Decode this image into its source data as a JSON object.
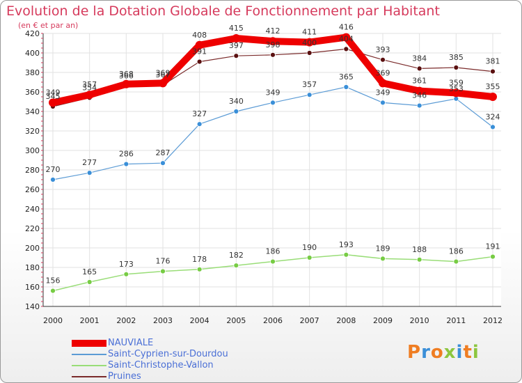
{
  "title": "Evolution de la Dotation Globale de Fonctionnement par Habitant",
  "subtitle": "(en € et par an)",
  "logo": "Proxiti",
  "chart_data": {
    "type": "line",
    "title": "Evolution de la Dotation Globale de Fonctionnement par Habitant",
    "ylabel": "(en € et par an)",
    "xlabel": "",
    "ylim": [
      140,
      420
    ],
    "yticks": [
      140,
      160,
      180,
      200,
      220,
      240,
      260,
      280,
      300,
      320,
      340,
      360,
      380,
      400,
      420
    ],
    "grid": true,
    "categories": [
      "2000",
      "2001",
      "2002",
      "2003",
      "2004",
      "2005",
      "2006",
      "2007",
      "2008",
      "2009",
      "2010",
      "2011",
      "2012"
    ],
    "series": [
      {
        "name": "NAUVIALE",
        "color": "#ee0000",
        "values": [
          349,
          357,
          368,
          369,
          408,
          415,
          412,
          411,
          416,
          369,
          361,
          359,
          355
        ]
      },
      {
        "name": "Saint-Cyprien-sur-Dourdou",
        "color": "#5b9bd5",
        "values": [
          270,
          277,
          286,
          287,
          327,
          340,
          349,
          357,
          365,
          349,
          346,
          353,
          324
        ]
      },
      {
        "name": "Saint-Christophe-Vallon",
        "color": "#99dd77",
        "values": [
          156,
          165,
          173,
          176,
          178,
          182,
          186,
          190,
          193,
          189,
          188,
          186,
          191
        ]
      },
      {
        "name": "Pruines",
        "color": "#7a2a2a",
        "values": [
          345,
          354,
          366,
          367,
          391,
          397,
          398,
          400,
          404,
          393,
          384,
          385,
          381
        ]
      }
    ]
  }
}
